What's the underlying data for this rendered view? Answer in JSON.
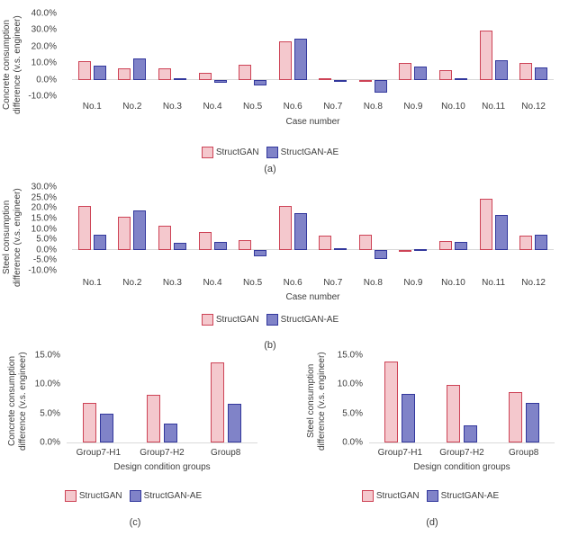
{
  "colors": {
    "structgan_fill": "#f4c8cd",
    "structgan_border": "#cd4356",
    "structgan_ae_fill": "#8083c8",
    "structgan_ae_border": "#32379c",
    "axis_line": "#d9d9d9",
    "text": "#3d3d3d"
  },
  "chart_data": [
    {
      "id": "a",
      "type": "bar",
      "sublabel": "(a)",
      "ylabel": "Concrete consumption difference (v.s. engineer)",
      "ylabel_lines": [
        "Concrete consumption",
        "difference (v.s. engineer)"
      ],
      "xlabel": "Case number",
      "categories": [
        "No.1",
        "No.2",
        "No.3",
        "No.4",
        "No.5",
        "No.6",
        "No.7",
        "No.8",
        "No.9",
        "No.10",
        "No.11",
        "No.12"
      ],
      "series": [
        {
          "name": "StructGAN",
          "values": [
            11.0,
            6.6,
            6.6,
            4.0,
            9.0,
            23.3,
            1.1,
            -0.5,
            10.2,
            6.0,
            29.5,
            10.0
          ]
        },
        {
          "name": "StructGAN-AE",
          "values": [
            8.6,
            12.8,
            0.7,
            -2.0,
            -3.3,
            24.6,
            -1.5,
            -7.9,
            7.8,
            0.9,
            11.5,
            7.3
          ]
        }
      ],
      "ylim": [
        -10,
        40
      ],
      "yticks": [
        40,
        30,
        20,
        10,
        0,
        -10
      ],
      "ytick_labels": [
        "40.0%",
        "30.0%",
        "20.0%",
        "10.0%",
        "0.0%",
        "-10.0%"
      ],
      "grid": false,
      "legend_position": "bottom"
    },
    {
      "id": "b",
      "type": "bar",
      "sublabel": "(b)",
      "ylabel": "Steel consumption difference (v.s. engineer)",
      "ylabel_lines": [
        "Steel consumption",
        "difference (v.s. engineer)"
      ],
      "xlabel": "Case number",
      "categories": [
        "No.1",
        "No.2",
        "No.3",
        "No.4",
        "No.5",
        "No.6",
        "No.7",
        "No.8",
        "No.9",
        "No.10",
        "No.11",
        "No.12"
      ],
      "series": [
        {
          "name": "StructGAN",
          "values": [
            21.0,
            15.6,
            11.5,
            8.7,
            4.6,
            21.1,
            6.9,
            7.4,
            -0.7,
            4.3,
            24.6,
            6.6
          ]
        },
        {
          "name": "StructGAN-AE",
          "values": [
            7.2,
            18.7,
            3.5,
            3.9,
            -3.0,
            17.7,
            0.9,
            -4.3,
            0.4,
            3.7,
            16.6,
            7.0
          ]
        }
      ],
      "ylim": [
        -10,
        30
      ],
      "yticks": [
        30,
        25,
        20,
        15,
        10,
        5,
        0,
        -5,
        -10
      ],
      "ytick_labels": [
        "30.0%",
        "25.0%",
        "20.0%",
        "15.0%",
        "10.0%",
        "5.0%",
        "0.0%",
        "-5.0%",
        "-10.0%"
      ],
      "grid": false,
      "legend_position": "bottom"
    },
    {
      "id": "c",
      "type": "bar",
      "sublabel": "(c)",
      "ylabel": "Concrete consumption difference (v.s. engineer)",
      "ylabel_lines": [
        "Concrete consumption",
        "difference (v.s. engineer)"
      ],
      "xlabel": "Design condition groups",
      "categories": [
        "Group7-H1",
        "Group7-H2",
        "Group8"
      ],
      "series": [
        {
          "name": "StructGAN",
          "values": [
            6.8,
            8.2,
            13.8
          ]
        },
        {
          "name": "StructGAN-AE",
          "values": [
            5.0,
            3.3,
            6.7
          ]
        }
      ],
      "ylim": [
        0,
        15
      ],
      "yticks": [
        15,
        10,
        5,
        0
      ],
      "ytick_labels": [
        "15.0%",
        "10.0%",
        "5.0%",
        "0.0%"
      ],
      "grid": false,
      "legend_position": "bottom"
    },
    {
      "id": "d",
      "type": "bar",
      "sublabel": "(d)",
      "ylabel": "Steel consumption difference (v.s. engineer)",
      "ylabel_lines": [
        "Steel consumption",
        "difference (v.s. engineer)"
      ],
      "xlabel": "Design condition groups",
      "categories": [
        "Group7-H1",
        "Group7-H2",
        "Group8"
      ],
      "series": [
        {
          "name": "StructGAN",
          "values": [
            13.9,
            9.9,
            8.6
          ]
        },
        {
          "name": "StructGAN-AE",
          "values": [
            8.3,
            2.9,
            6.8
          ]
        }
      ],
      "ylim": [
        0,
        15
      ],
      "yticks": [
        15,
        10,
        5,
        0
      ],
      "ytick_labels": [
        "15.0%",
        "10.0%",
        "5.0%",
        "0.0%"
      ],
      "grid": false,
      "legend_position": "bottom"
    }
  ]
}
